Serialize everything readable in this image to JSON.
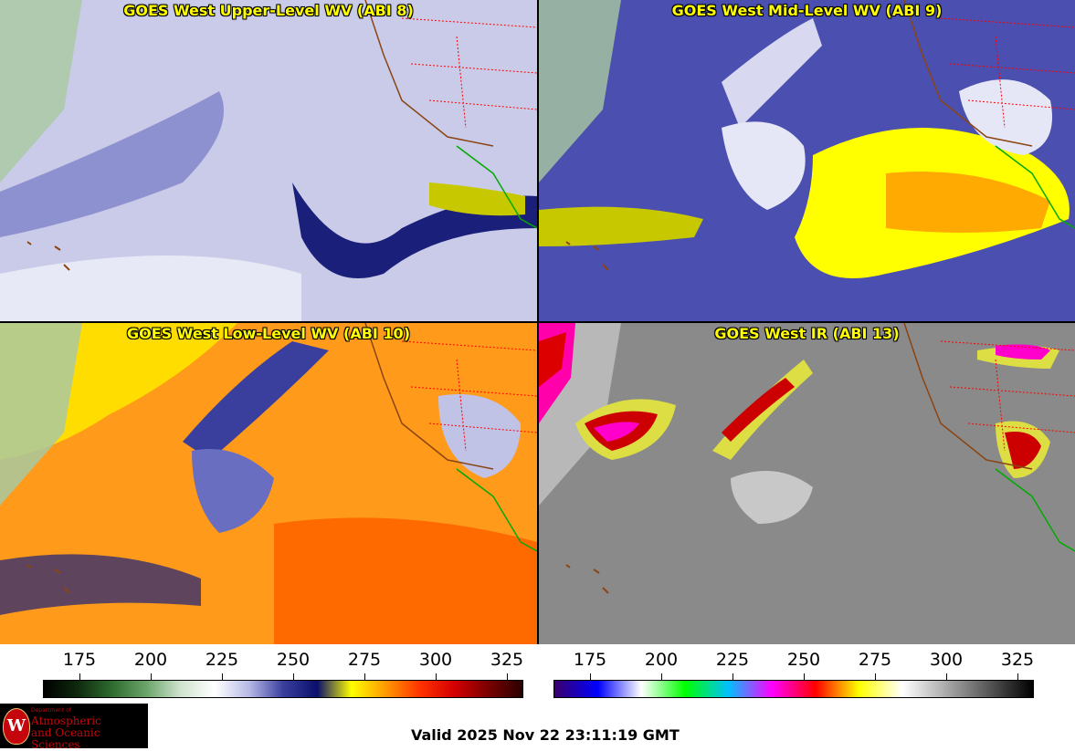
{
  "panels": {
    "p1": {
      "title": "GOES West Upper-Level WV (ABI 8)"
    },
    "p2": {
      "title": "GOES West Mid-Level WV (ABI 9)"
    },
    "p3": {
      "title": "GOES West Low-Level WV (ABI 10)"
    },
    "p4": {
      "title": "GOES West IR (ABI 13)"
    }
  },
  "colorbar_wv": {
    "ticks": [
      "175",
      "200",
      "225",
      "250",
      "275",
      "300",
      "325"
    ],
    "colors": [
      "#000000",
      "#0e2a0e",
      "#2f6b2f",
      "#6aa46a",
      "#cfe3cf",
      "#ffffff",
      "#b7b9e6",
      "#3a3f9e",
      "#0b0f6b",
      "#ffff00",
      "#ff9900",
      "#ff3300",
      "#d40000",
      "#7a0000",
      "#2a0000"
    ]
  },
  "colorbar_ir": {
    "ticks": [
      "175",
      "200",
      "225",
      "250",
      "275",
      "300",
      "325"
    ],
    "colors": [
      "#3a006b",
      "#0000ff",
      "#ffffff",
      "#00ff00",
      "#00c0ff",
      "#ff00ff",
      "#ff0000",
      "#ffff00",
      "#ffffff",
      "#aaaaaa",
      "#555555",
      "#000000"
    ]
  },
  "logo": {
    "dept_line1": "Department of",
    "dept_line2": "Atmospheric",
    "dept_line3": "and Oceanic Sciences",
    "seal_letter": "W"
  },
  "valid_time": "Valid 2025 Nov 22 23:11:19 GMT"
}
